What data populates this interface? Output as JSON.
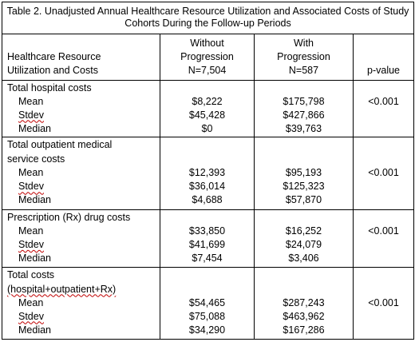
{
  "title": "Table 2. Unadjusted Annual Healthcare Resource Utilization and Associated Costs of Study Cohorts During the Follow-up Periods",
  "header": {
    "col1": [
      "",
      "Healthcare Resource",
      "Utilization and Costs"
    ],
    "col2": [
      "Without",
      "Progression",
      "N=7,504"
    ],
    "col3": [
      "With",
      "Progression",
      "N=587"
    ],
    "col4": [
      "",
      "",
      "p-value"
    ]
  },
  "sections": [
    {
      "title_lines": [
        "Total hospital costs"
      ],
      "rows": [
        {
          "label": "Mean",
          "without": "$8,222",
          "with": "$175,798"
        },
        {
          "label": "Stdev",
          "without": "$45,428",
          "with": "$427,866"
        },
        {
          "label": "Median",
          "without": "$0",
          "with": "$39,763"
        }
      ],
      "pvalue": "<0.001"
    },
    {
      "title_lines": [
        "Total outpatient medical",
        "service costs"
      ],
      "rows": [
        {
          "label": "Mean",
          "without": "$12,393",
          "with": "$95,193"
        },
        {
          "label": "Stdev",
          "without": "$36,014",
          "with": "$125,323"
        },
        {
          "label": "Median",
          "without": "$4,688",
          "with": "$57,870"
        }
      ],
      "pvalue": "<0.001"
    },
    {
      "title_lines": [
        "Prescription (Rx) drug costs"
      ],
      "rows": [
        {
          "label": "Mean",
          "without": "$33,850",
          "with": "$16,252"
        },
        {
          "label": "Stdev",
          "without": "$41,699",
          "with": "$24,079"
        },
        {
          "label": "Median",
          "without": "$7,454",
          "with": "$3,406"
        }
      ],
      "pvalue": "<0.001"
    },
    {
      "title_lines": [
        "Total costs",
        "(hospital+outpatient+Rx)"
      ],
      "rows": [
        {
          "label": "Mean",
          "without": "$54,465",
          "with": "$287,243"
        },
        {
          "label": "Stdev",
          "without": "$75,088",
          "with": "$463,962"
        },
        {
          "label": "Median",
          "without": "$34,290",
          "with": "$167,286"
        }
      ],
      "pvalue": "<0.001"
    }
  ]
}
